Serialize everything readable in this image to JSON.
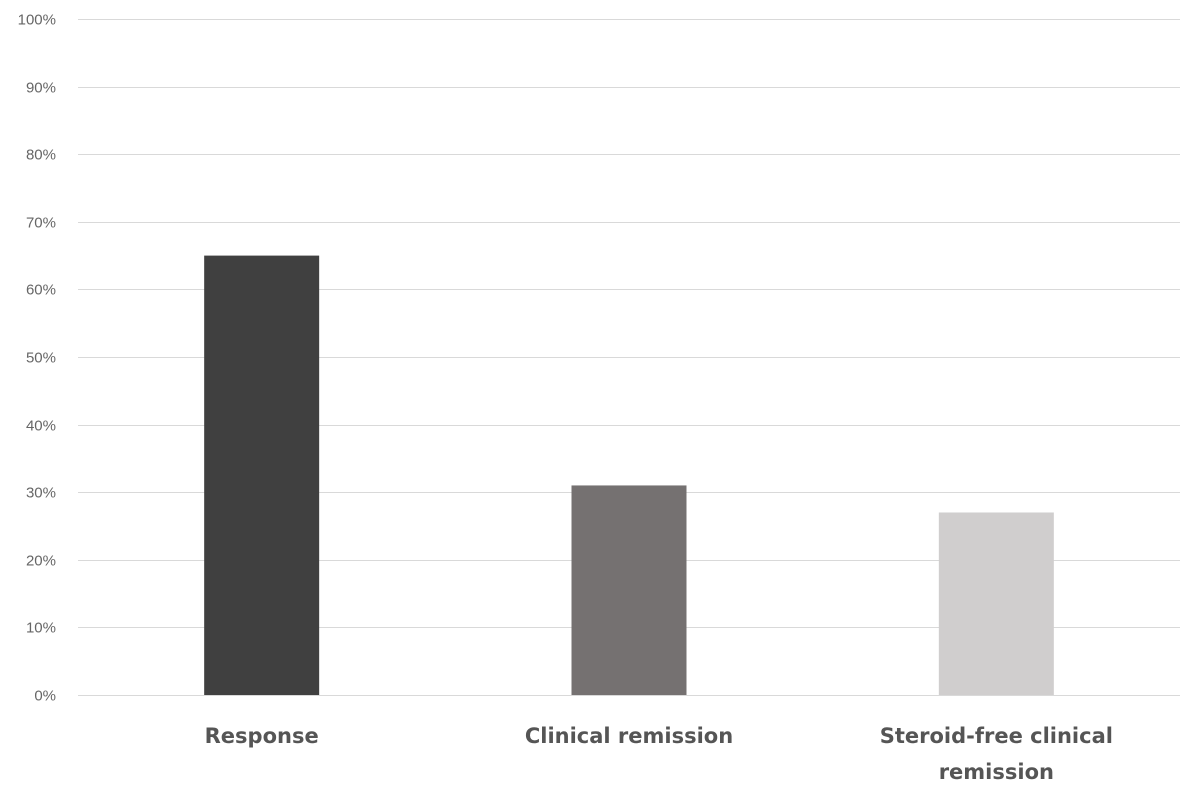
{
  "chart_data": {
    "type": "bar",
    "title": "",
    "xlabel": "",
    "ylabel": "",
    "categories": [
      [
        "Response"
      ],
      [
        "Clinical remission"
      ],
      [
        "Steroid-free clinical",
        "remission"
      ]
    ],
    "values": [
      65,
      31,
      27
    ],
    "value_format": "percent",
    "ylim": [
      0,
      100
    ],
    "yticks": [
      "0%",
      "10%",
      "20%",
      "30%",
      "40%",
      "50%",
      "60%",
      "70%",
      "80%",
      "90%",
      "100%"
    ],
    "grid": true,
    "legend": "none",
    "colors": [
      "#404040",
      "#757171",
      "#d0cece"
    ]
  }
}
